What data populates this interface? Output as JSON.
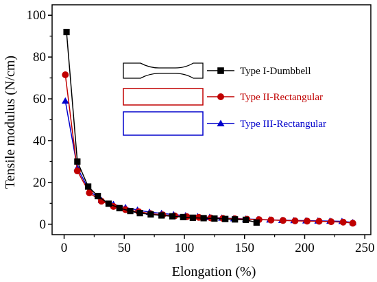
{
  "chart_data": {
    "type": "line",
    "xlabel": "Elongation (%)",
    "ylabel": "Tensile modulus (N/cm)",
    "xlim": [
      -10,
      255
    ],
    "ylim": [
      -5,
      105
    ],
    "xticks": [
      0,
      50,
      100,
      150,
      200,
      250
    ],
    "yticks": [
      0,
      20,
      40,
      60,
      80,
      100
    ],
    "grid": false,
    "legend_position": "top-right",
    "series": [
      {
        "name": "Type I-Dumbbell",
        "color": "#000000",
        "marker": "square",
        "legend_shape": "dumbbell-outline",
        "x": [
          2,
          11,
          20,
          28,
          37,
          46,
          55,
          63,
          72,
          81,
          90,
          99,
          107,
          116,
          125,
          134,
          142,
          151,
          160
        ],
        "y": [
          92,
          30,
          18,
          13.5,
          9.8,
          7.7,
          6.3,
          5.3,
          4.7,
          4.2,
          3.8,
          3.4,
          3.1,
          2.9,
          2.7,
          2.5,
          2.3,
          2.1,
          0.8
        ]
      },
      {
        "name": "Type II-Rectangular",
        "color": "#c00000",
        "marker": "circle",
        "legend_shape": "rectangle-outline",
        "x": [
          1,
          11,
          21,
          31,
          41,
          51,
          62,
          72,
          82,
          92,
          102,
          112,
          122,
          132,
          142,
          152,
          162,
          172,
          182,
          192,
          202,
          212,
          222,
          232,
          240
        ],
        "y": [
          71.5,
          25.5,
          15,
          11,
          8.5,
          7,
          6,
          5,
          4.5,
          4,
          3.6,
          3.3,
          3,
          2.8,
          2.6,
          2.4,
          2.2,
          2,
          1.8,
          1.6,
          1.5,
          1.4,
          1.2,
          1,
          0.5
        ]
      },
      {
        "name": "Type III-Rectangular",
        "color": "#0000cc",
        "marker": "triangle",
        "legend_shape": "rectangle-outline",
        "x": [
          1,
          11,
          21,
          31,
          41,
          51,
          61,
          71,
          81,
          91,
          101,
          111,
          121,
          131,
          141,
          151,
          161,
          171,
          181,
          191,
          201,
          211,
          221,
          231,
          240
        ],
        "y": [
          59,
          27,
          16,
          11.5,
          9.5,
          8,
          6.8,
          5.8,
          5.2,
          4.6,
          4.1,
          3.7,
          3.3,
          3,
          2.7,
          2.5,
          2.3,
          2.1,
          1.9,
          1.8,
          1.7,
          1.6,
          1.5,
          1.4,
          0.8
        ]
      }
    ]
  }
}
